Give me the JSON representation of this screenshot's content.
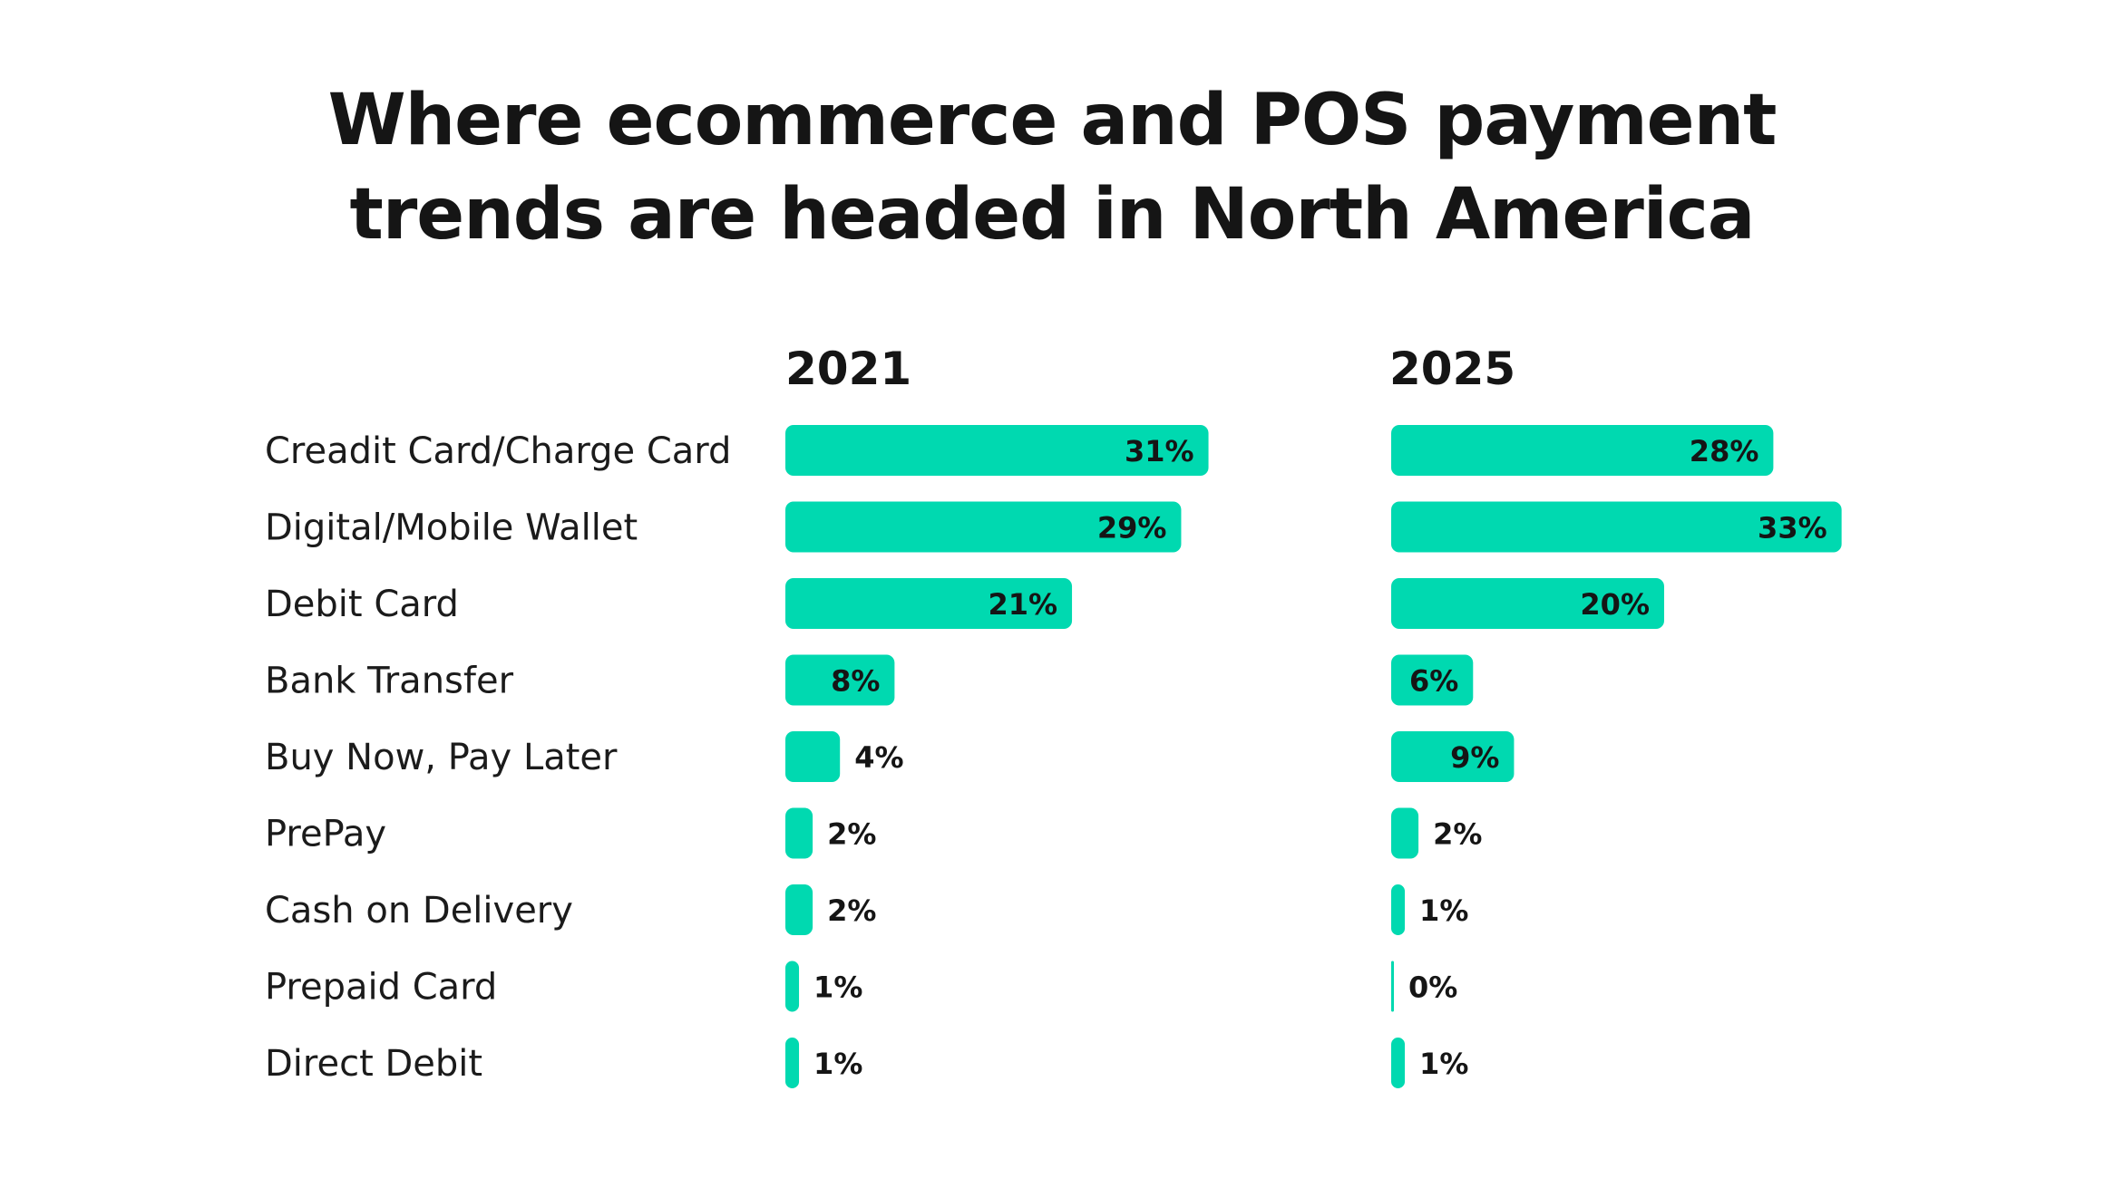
{
  "title_line1": "Where ecommerce and POS payment",
  "title_line2": "trends are headed in North America",
  "bar_color": "#00d9b0",
  "chart_data": [
    {
      "type": "bar",
      "orientation": "horizontal",
      "title": "2021",
      "categories": [
        "Creadit Card/Charge Card",
        "Digital/Mobile Wallet",
        "Debit Card",
        "Bank Transfer",
        "Buy Now, Pay Later",
        "PrePay",
        "Cash on Delivery",
        "Prepaid Card",
        "Direct Debit"
      ],
      "values": [
        31,
        29,
        21,
        8,
        4,
        2,
        2,
        1,
        1
      ],
      "value_labels": [
        "31%",
        "29%",
        "21%",
        "8%",
        "4%",
        "2%",
        "2%",
        "1%",
        "1%"
      ],
      "unit": "%",
      "grid": false
    },
    {
      "type": "bar",
      "orientation": "horizontal",
      "title": "2025",
      "categories": [
        "Creadit Card/Charge Card",
        "Digital/Mobile Wallet",
        "Debit Card",
        "Bank Transfer",
        "Buy Now, Pay Later",
        "PrePay",
        "Cash on Delivery",
        "Prepaid Card",
        "Direct Debit"
      ],
      "values": [
        28,
        33,
        20,
        6,
        9,
        2,
        1,
        0,
        1
      ],
      "value_labels": [
        "28%",
        "33%",
        "20%",
        "6%",
        "9%",
        "2%",
        "1%",
        "0%",
        "1%"
      ],
      "unit": "%",
      "grid": false
    }
  ]
}
